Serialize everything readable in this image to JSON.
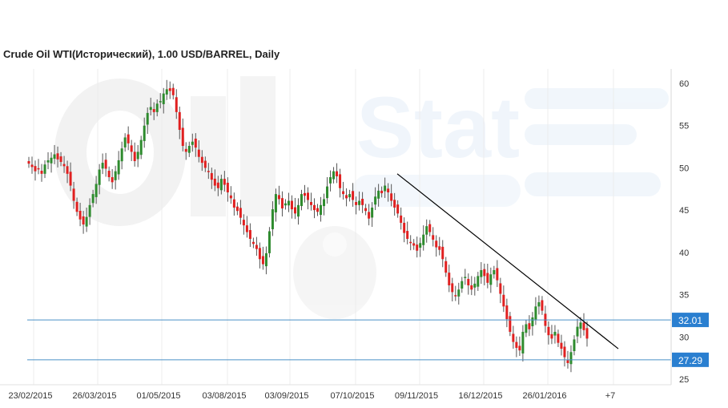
{
  "chart_data": {
    "type": "candlestick",
    "title": "Crude Oil WTI(Исторический), 1.00 USD/BARREL, Daily",
    "ylim": [
      24,
      61.5
    ],
    "y_ticks": [
      25,
      30,
      35,
      40,
      45,
      50,
      55,
      60
    ],
    "x_ticks": [
      "23/02/2015",
      "26/03/2015",
      "01/05/2015",
      "03/08/2015",
      "03/09/2015",
      "07/10/2015",
      "09/11/2015",
      "16/12/2015",
      "26/01/2016",
      "+7"
    ],
    "grid": true,
    "colors": {
      "up": "#2e8b2e",
      "down": "#e02020",
      "hline": "#4a90c8",
      "label_bg": "#2a7fd0",
      "trendline": "#000000",
      "grid": "#ececec"
    },
    "watermark_text": "Stat",
    "candles_close": [
      50.5,
      50.1,
      49.6,
      49.9,
      49.3,
      50.4,
      50.9,
      51.2,
      51.6,
      51.0,
      50.7,
      50.2,
      49.3,
      47.9,
      46.1,
      44.8,
      43.9,
      43.3,
      44.2,
      45.6,
      46.9,
      48.1,
      49.8,
      50.6,
      49.9,
      48.9,
      48.3,
      49.6,
      50.9,
      52.3,
      53.6,
      52.9,
      51.9,
      50.8,
      51.9,
      53.3,
      55.0,
      56.5,
      57.2,
      56.6,
      57.6,
      57.9,
      58.8,
      59.3,
      59.1,
      58.6,
      56.6,
      54.5,
      52.6,
      51.9,
      52.6,
      53.1,
      52.4,
      51.3,
      50.6,
      50.0,
      49.5,
      48.6,
      47.9,
      47.6,
      48.7,
      48.0,
      47.1,
      46.4,
      45.3,
      44.9,
      44.1,
      43.2,
      42.4,
      41.6,
      41.0,
      40.4,
      39.2,
      38.6,
      39.9,
      42.5,
      45.1,
      46.9,
      46.3,
      45.2,
      45.8,
      46.1,
      45.1,
      44.6,
      45.6,
      46.9,
      46.7,
      46.2,
      45.6,
      45.0,
      44.8,
      45.6,
      46.3,
      47.8,
      48.9,
      49.6,
      49.0,
      47.6,
      46.9,
      46.4,
      46.9,
      46.2,
      45.6,
      46.1,
      45.6,
      44.9,
      44.0,
      45.3,
      46.6,
      47.3,
      47.0,
      47.9,
      47.1,
      46.1,
      45.3,
      44.6,
      43.5,
      42.3,
      41.6,
      41.2,
      40.8,
      40.2,
      41.1,
      42.1,
      43.1,
      42.4,
      41.5,
      40.6,
      40.3,
      39.2,
      37.6,
      36.1,
      35.3,
      34.9,
      35.6,
      36.6,
      37.1,
      36.1,
      35.6,
      36.3,
      37.2,
      37.9,
      37.2,
      36.4,
      37.4,
      37.9,
      36.7,
      35.1,
      33.6,
      32.1,
      30.6,
      29.4,
      28.7,
      28.4,
      30.6,
      31.5,
      30.9,
      32.3,
      33.6,
      34.1,
      33.1,
      31.3,
      30.2,
      29.8,
      30.6,
      29.3,
      28.6,
      27.6,
      26.9,
      28.2,
      29.7,
      31.2,
      31.7,
      30.8,
      29.8
    ]
  }
}
